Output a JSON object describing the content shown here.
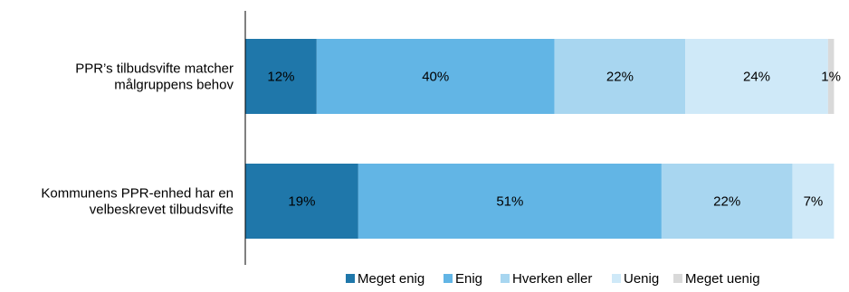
{
  "chart_data": {
    "type": "bar",
    "orientation": "horizontal",
    "stacked": true,
    "percent": true,
    "categories": [
      [
        "PPR’s  tilbudsvifte matcher",
        "målgruppens behov"
      ],
      [
        "Kommunens PPR-enhed har en",
        "velbeskrevet tilbudsvifte"
      ]
    ],
    "series": [
      {
        "name": "Meget enig",
        "color": "#1f77aa",
        "values": [
          12,
          19
        ]
      },
      {
        "name": "Enig",
        "color": "#62b5e5",
        "values": [
          40,
          51
        ]
      },
      {
        "name": "Hverken eller",
        "color": "#a8d6f0",
        "values": [
          22,
          22
        ]
      },
      {
        "name": "Uenig",
        "color": "#cfe9f8",
        "values": [
          24,
          7
        ]
      },
      {
        "name": "Meget uenig",
        "color": "#d9d9d9",
        "values": [
          1,
          0
        ]
      }
    ],
    "value_labels": [
      [
        "12%",
        "19%"
      ],
      [
        "40%",
        "51%"
      ],
      [
        "22%",
        "22%"
      ],
      [
        "24%",
        "7%"
      ],
      [
        "1%",
        ""
      ]
    ],
    "xlim": [
      0,
      100
    ],
    "grid": false,
    "legend": "bottom-right",
    "title": "",
    "xlabel": "",
    "ylabel": ""
  }
}
